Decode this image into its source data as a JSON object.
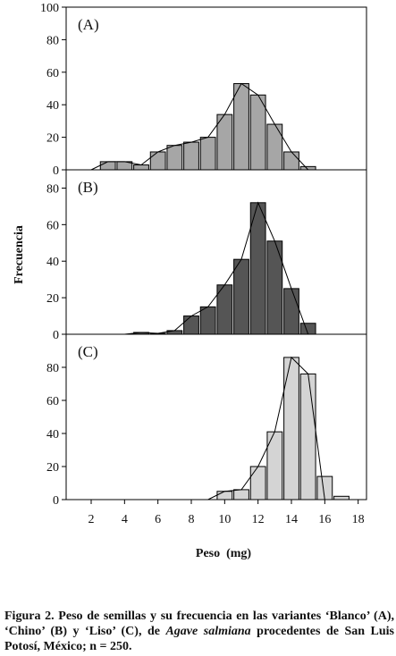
{
  "chart_data": {
    "type": "bar",
    "ylabel": "Frecuencia",
    "xlabel": "Peso  (mg)",
    "x_ticks": [
      2,
      4,
      6,
      8,
      10,
      12,
      14,
      16,
      18
    ],
    "xlim": [
      0.5,
      18.5
    ],
    "panels": [
      {
        "label": "(A)",
        "ylim": [
          0,
          100
        ],
        "y_ticks": [
          0,
          20,
          40,
          60,
          80,
          100
        ],
        "bar_color": "#a6a6a6",
        "x": [
          3,
          4,
          5,
          6,
          7,
          8,
          9,
          10,
          11,
          12,
          13,
          14,
          15
        ],
        "values": [
          5,
          5,
          3,
          11,
          15,
          17,
          20,
          34,
          53,
          46,
          28,
          11,
          2
        ],
        "line_x": [
          2,
          3,
          4,
          5,
          6,
          7,
          8,
          9,
          10,
          11,
          12,
          13,
          14,
          15
        ],
        "line_y": [
          0,
          5,
          5,
          3,
          11,
          15,
          17,
          20,
          34,
          53,
          46,
          28,
          11,
          0
        ]
      },
      {
        "label": "(B)",
        "ylim": [
          0,
          90
        ],
        "y_ticks": [
          0,
          20,
          40,
          60,
          80
        ],
        "bar_color": "#555555",
        "x": [
          5,
          6,
          7,
          8,
          9,
          10,
          11,
          12,
          13,
          14,
          15
        ],
        "values": [
          1,
          0.5,
          2,
          10,
          15,
          27,
          41,
          72,
          51,
          25,
          6
        ],
        "line_x": [
          4,
          5,
          6,
          7,
          8,
          9,
          10,
          11,
          12,
          13,
          14,
          15
        ],
        "line_y": [
          0,
          1,
          0.5,
          2,
          10,
          15,
          27,
          41,
          72,
          51,
          25,
          0
        ]
      },
      {
        "label": "(C)",
        "ylim": [
          0,
          100
        ],
        "y_ticks": [
          0,
          20,
          40,
          60,
          80
        ],
        "bar_color": "#d4d4d4",
        "x": [
          10,
          11,
          12,
          13,
          14,
          15,
          16,
          17
        ],
        "values": [
          5,
          6,
          20,
          41,
          86,
          76,
          14,
          2
        ],
        "line_x": [
          9,
          10,
          11,
          12,
          13,
          14,
          15,
          16
        ],
        "line_y": [
          0,
          5,
          6,
          20,
          41,
          86,
          76,
          0
        ]
      }
    ]
  },
  "caption": {
    "lead": "Figura 2. Peso de semillas y su frecuencia en las variantes ‘Blanco’ (A), ‘Chino’  (B) y ‘Liso’ (C), de ",
    "species": "Agave salmiana",
    "tail": " procedentes de San Luis Potosí, México; n = 250."
  }
}
